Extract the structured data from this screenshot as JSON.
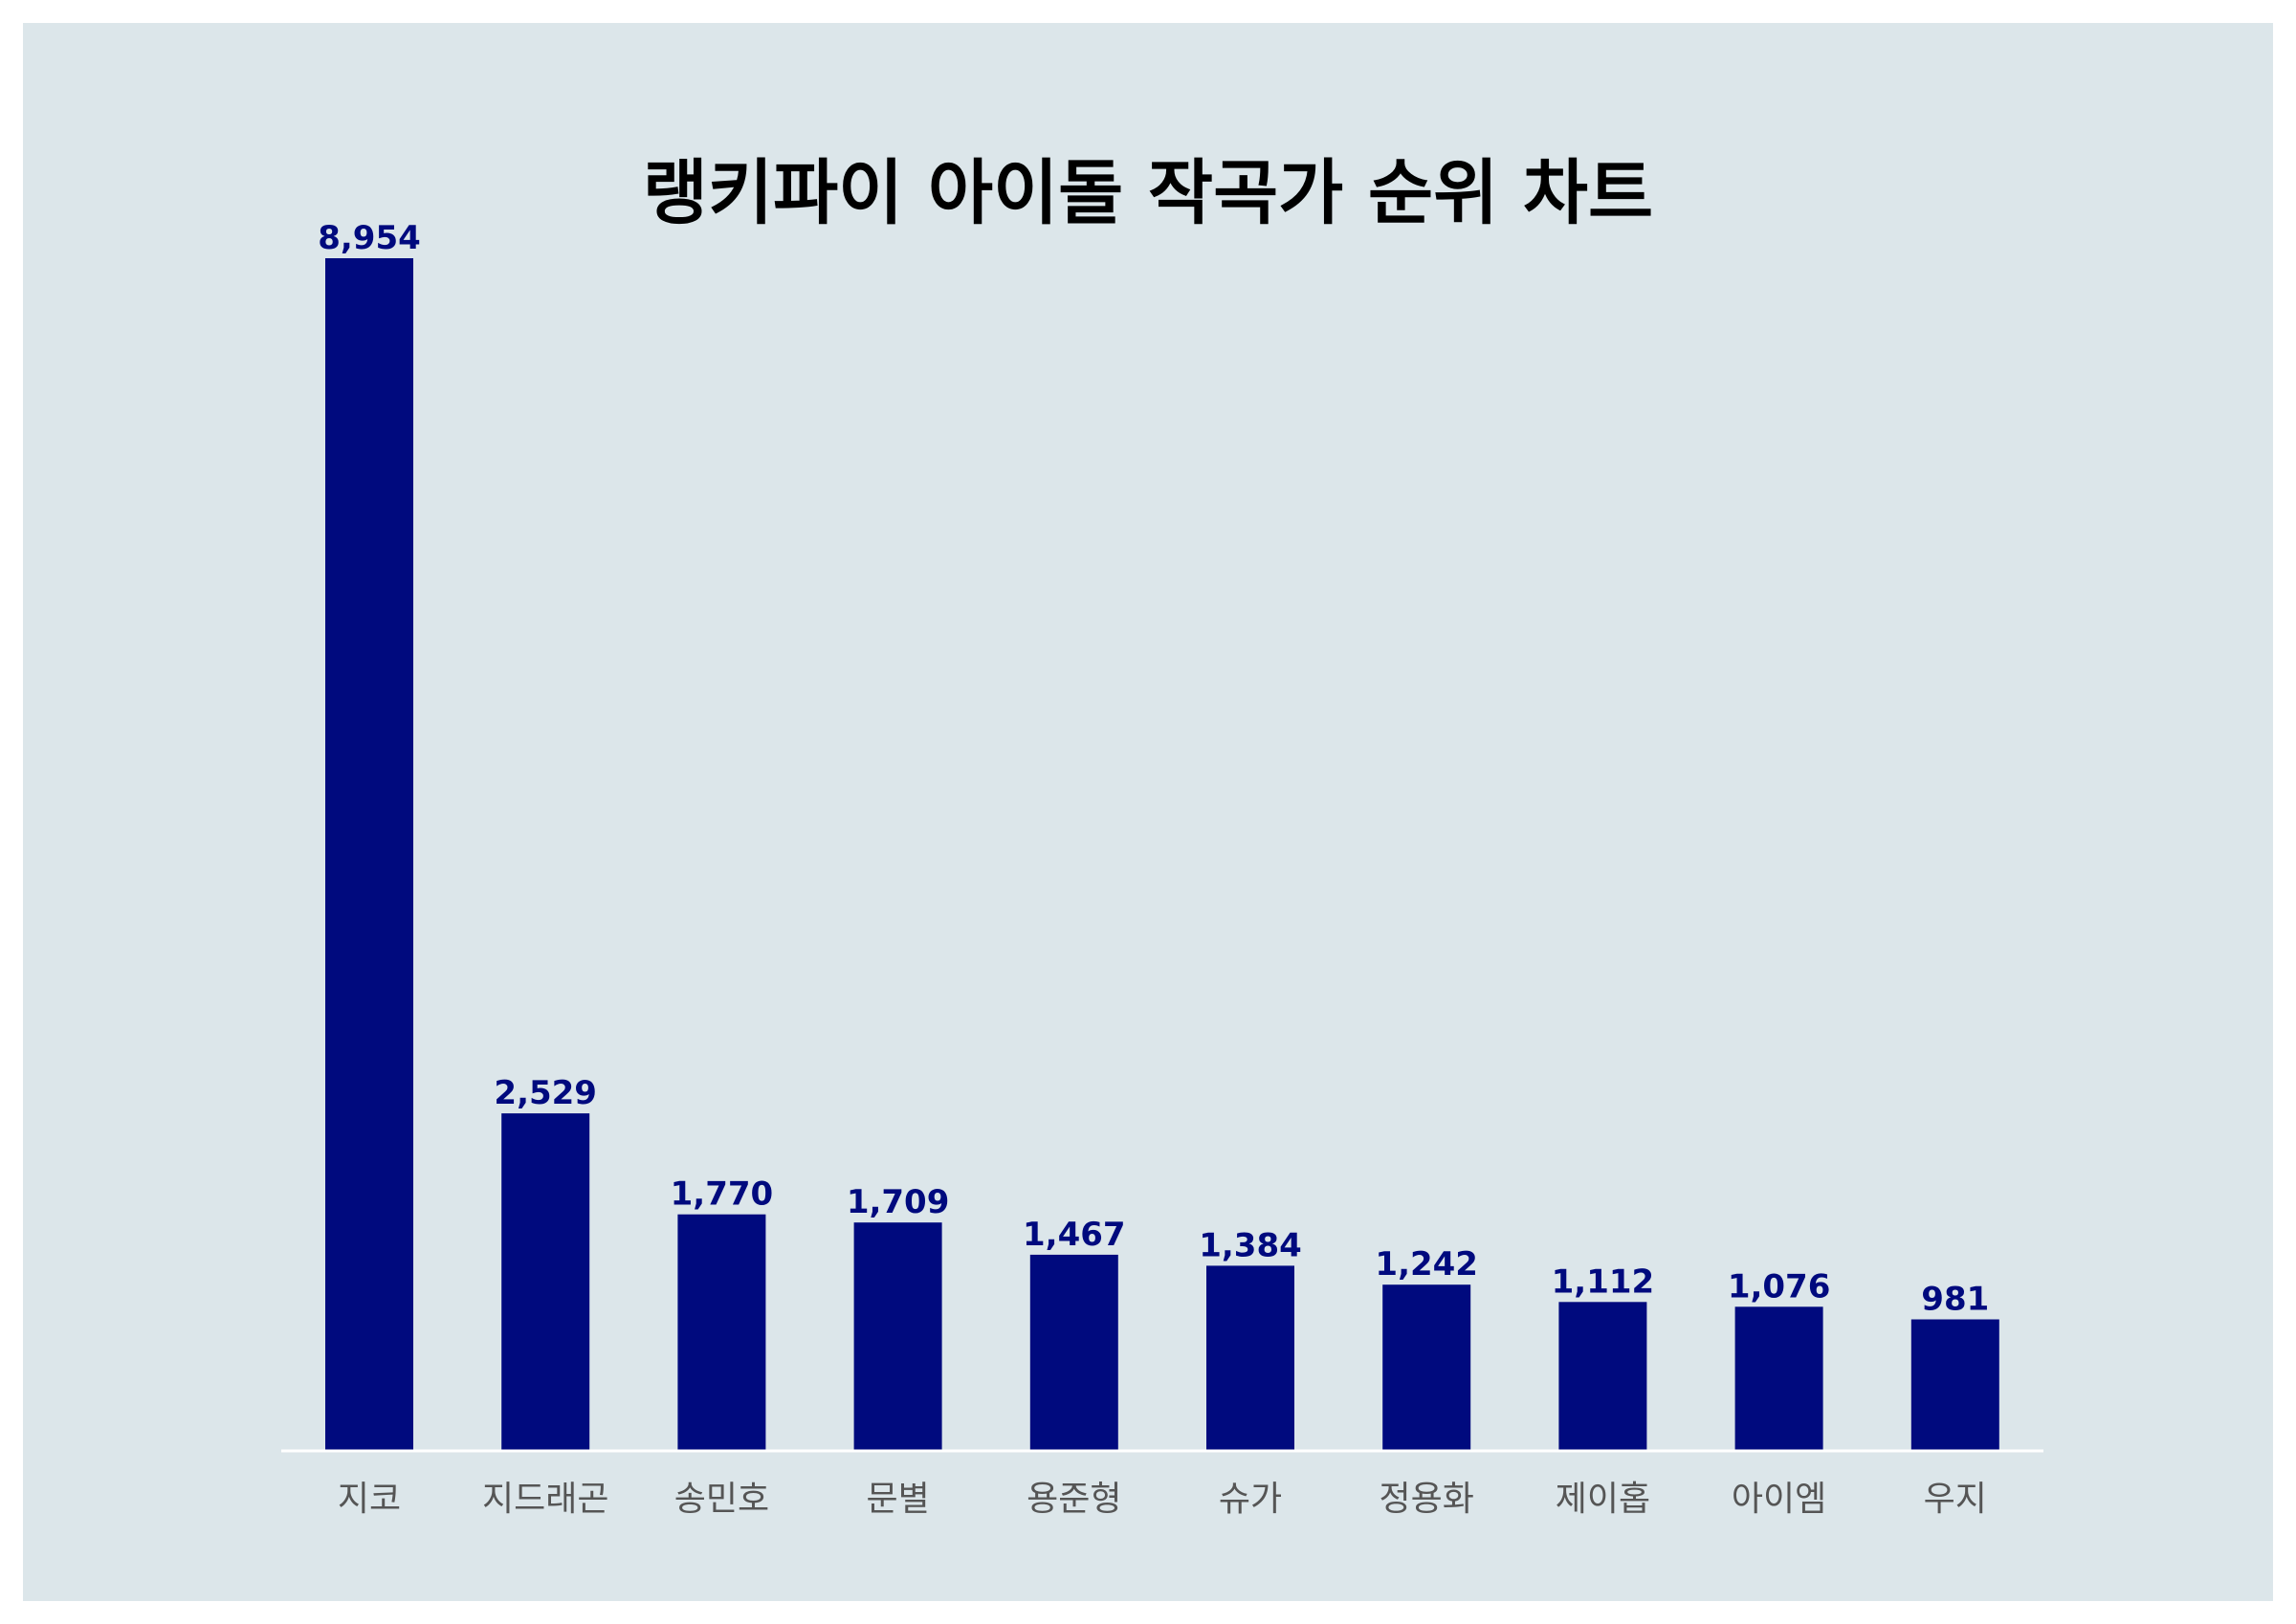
{
  "chart_data": {
    "type": "bar",
    "title": "랭키파이 아이돌 작곡가 순위 차트",
    "xlabel": "",
    "ylabel": "",
    "categories": [
      "지코",
      "지드래곤",
      "송민호",
      "문별",
      "용준형",
      "슈가",
      "정용화",
      "제이홉",
      "아이엠",
      "우지"
    ],
    "values": [
      8954,
      2529,
      1770,
      1709,
      1467,
      1384,
      1242,
      1112,
      1076,
      981
    ],
    "value_labels": [
      "8,954",
      "2,529",
      "1,770",
      "1,709",
      "1,467",
      "1,384",
      "1,242",
      "1,112",
      "1,076",
      "981"
    ],
    "ylim": [
      0,
      8954
    ],
    "grid": false,
    "legend": "none",
    "colors": {
      "bar": "#000a7e",
      "value_label": "#000a7e",
      "category_label": "#555555",
      "axis_line": "#ffffff",
      "background": "#dce6ea"
    }
  }
}
